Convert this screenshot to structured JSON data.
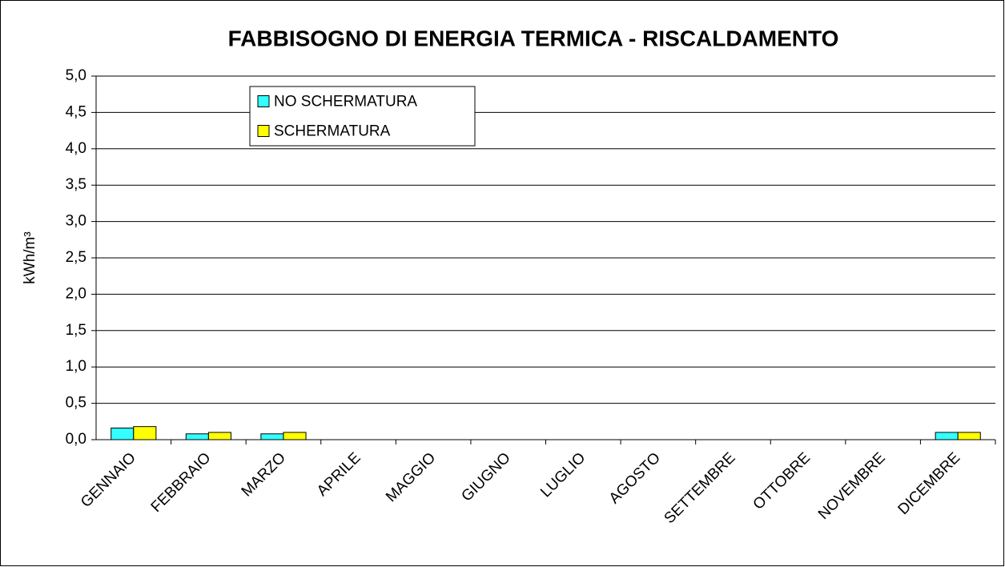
{
  "chart_data": {
    "type": "bar",
    "title": "FABBISOGNO DI ENERGIA TERMICA - RISCALDAMENTO",
    "y_label": "kWh/m³",
    "categories": [
      "GENNAIO",
      "FEBBRAIO",
      "MARZO",
      "APRILE",
      "MAGGIO",
      "GIUGNO",
      "LUGLIO",
      "AGOSTO",
      "SETTEMBRE",
      "OTTOBRE",
      "NOVEMBRE",
      "DICEMBRE"
    ],
    "series": [
      {
        "name": "NO SCHERMATURA",
        "color": "#33ffff",
        "values": [
          0.16,
          0.08,
          0.08,
          0,
          0,
          0,
          0,
          0,
          0,
          0,
          0,
          0.1
        ]
      },
      {
        "name": "SCHERMATURA",
        "color": "#ffff00",
        "values": [
          0.18,
          0.1,
          0.1,
          0,
          0,
          0,
          0,
          0,
          0,
          0,
          0,
          0.1
        ]
      }
    ],
    "ylim": [
      0,
      5
    ],
    "yticks": [
      {
        "value": 0,
        "label": "0,0"
      },
      {
        "value": 0.5,
        "label": "0,5"
      },
      {
        "value": 1,
        "label": "1,0"
      },
      {
        "value": 1.5,
        "label": "1,5"
      },
      {
        "value": 2,
        "label": "2,0"
      },
      {
        "value": 2.5,
        "label": "2,5"
      },
      {
        "value": 3,
        "label": "3,0"
      },
      {
        "value": 3.5,
        "label": "3,5"
      },
      {
        "value": 4,
        "label": "4,0"
      },
      {
        "value": 4.5,
        "label": "4,5"
      },
      {
        "value": 5,
        "label": "5,0"
      }
    ],
    "grid": true,
    "legend": "top-left"
  }
}
